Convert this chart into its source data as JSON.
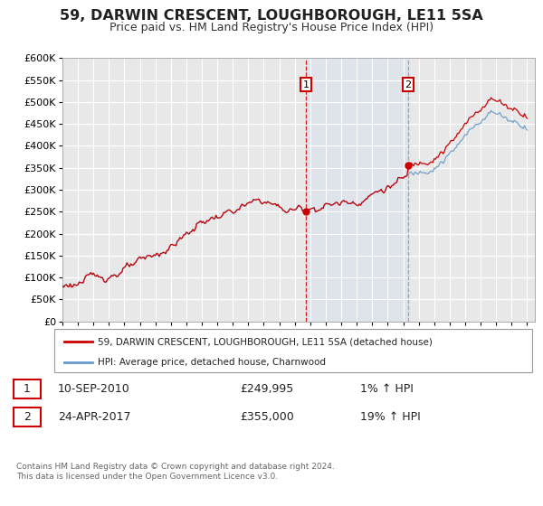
{
  "title": "59, DARWIN CRESCENT, LOUGHBOROUGH, LE11 5SA",
  "subtitle": "Price paid vs. HM Land Registry's House Price Index (HPI)",
  "title_fontsize": 11.5,
  "subtitle_fontsize": 9,
  "ylim": [
    0,
    600000
  ],
  "yticks": [
    0,
    50000,
    100000,
    150000,
    200000,
    250000,
    300000,
    350000,
    400000,
    450000,
    500000,
    550000,
    600000
  ],
  "xlim_start": 1995.0,
  "xlim_end": 2025.5,
  "background_color": "#ffffff",
  "plot_bg_color": "#e8e8e8",
  "grid_color": "#ffffff",
  "hpi_color": "#6699cc",
  "price_color": "#cc0000",
  "sale1_date": 2010.71,
  "sale1_price": 249995,
  "sale2_date": 2017.32,
  "sale2_price": 355000,
  "legend_label1": "59, DARWIN CRESCENT, LOUGHBOROUGH, LE11 5SA (detached house)",
  "legend_label2": "HPI: Average price, detached house, Charnwood",
  "table_row1": [
    "1",
    "10-SEP-2010",
    "£249,995",
    "1% ↑ HPI"
  ],
  "table_row2": [
    "2",
    "24-APR-2017",
    "£355,000",
    "19% ↑ HPI"
  ],
  "footer": "Contains HM Land Registry data © Crown copyright and database right 2024.\nThis data is licensed under the Open Government Licence v3.0.",
  "highlight_start": 2010.71,
  "highlight_end": 2017.32,
  "hpi_start_year": 1995.0,
  "n_months": 361
}
